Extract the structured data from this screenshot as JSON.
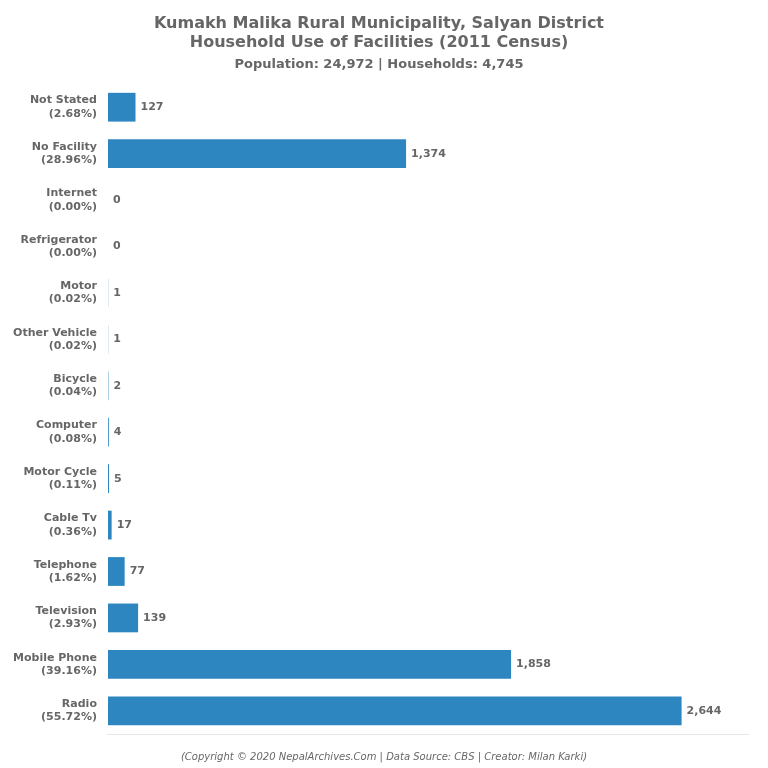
{
  "chart_data": {
    "type": "bar",
    "orientation": "horizontal",
    "title": "Kumakh Malika Rural Municipality, Salyan District\nHousehold Use of Facilities (2011 Census)",
    "subtitle": "Population: 24,972 | Households: 4,745",
    "annotations": [
      "(Copyright © 2020 NepalArchives.Com | Data Source: CBS | Creator: Milan Karki)"
    ],
    "categories": [
      "Not Stated\n(2.68%)",
      "No Facility\n(28.96%)",
      "Internet\n(0.00%)",
      "Refrigerator\n(0.00%)",
      "Motor\n(0.02%)",
      "Other Vehicle\n(0.02%)",
      "Bicycle\n(0.04%)",
      "Computer\n(0.08%)",
      "Motor Cycle\n(0.11%)",
      "Cable Tv\n(0.36%)",
      "Telephone\n(1.62%)",
      "Television\n(2.93%)",
      "Mobile Phone\n(39.16%)",
      "Radio\n(55.72%)"
    ],
    "values": [
      127,
      1374,
      0,
      0,
      1,
      1,
      2,
      4,
      5,
      17,
      77,
      139,
      1858,
      2644
    ],
    "value_labels": [
      "127",
      "1,374",
      "0",
      "0",
      "1",
      "1",
      "2",
      "4",
      "5",
      "17",
      "77",
      "139",
      "1,858",
      "2,644"
    ],
    "color": "#2E86C1",
    "xlim": [
      0,
      2950
    ],
    "grid": false,
    "data_labels": true,
    "tick_labels": "y"
  }
}
